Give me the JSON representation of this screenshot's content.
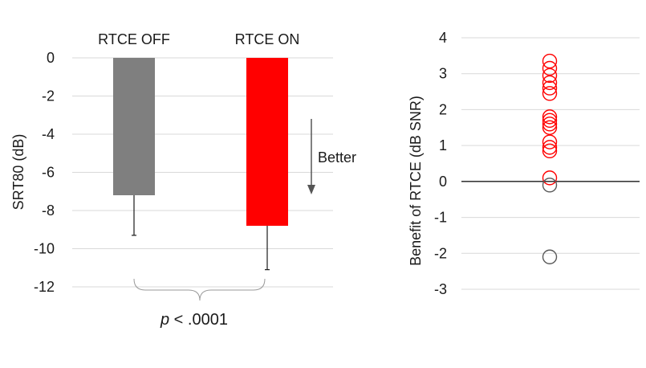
{
  "chart_data": [
    {
      "type": "bar",
      "title": "",
      "ylabel": "SRT80 (dB)",
      "ylim": [
        -12,
        0
      ],
      "yticks": [
        0,
        -2,
        -4,
        -6,
        -8,
        -10,
        -12
      ],
      "grid": true,
      "categories": [
        "RTCE OFF",
        "RTCE ON"
      ],
      "values": [
        -7.2,
        -8.8
      ],
      "error_bars": [
        2.1,
        2.3
      ],
      "colors": [
        "#7f7f7f",
        "#ff0000"
      ],
      "annotations": {
        "arrow_label": "Better",
        "significance_italic": "p",
        "significance_rest": " < .0001"
      }
    },
    {
      "type": "scatter",
      "title": "",
      "ylabel": "Benefit of RTCE  (dB SNR)",
      "ylim": [
        -3,
        4
      ],
      "yticks": [
        4,
        3,
        2,
        1,
        0,
        -1,
        -2,
        -3
      ],
      "grid": true,
      "zero_line": true,
      "points": [
        {
          "y": 3.35,
          "color": "#ff0000"
        },
        {
          "y": 3.15,
          "color": "#ff0000"
        },
        {
          "y": 2.95,
          "color": "#ff0000"
        },
        {
          "y": 2.75,
          "color": "#ff0000"
        },
        {
          "y": 2.6,
          "color": "#ff0000"
        },
        {
          "y": 2.45,
          "color": "#ff0000"
        },
        {
          "y": 1.8,
          "color": "#ff0000"
        },
        {
          "y": 1.7,
          "color": "#ff0000"
        },
        {
          "y": 1.6,
          "color": "#ff0000"
        },
        {
          "y": 1.5,
          "color": "#ff0000"
        },
        {
          "y": 1.1,
          "color": "#ff0000"
        },
        {
          "y": 0.95,
          "color": "#ff0000"
        },
        {
          "y": 0.85,
          "color": "#ff0000"
        },
        {
          "y": 0.1,
          "color": "#ff0000"
        },
        {
          "y": -0.1,
          "color": "#595959"
        },
        {
          "y": -2.1,
          "color": "#595959"
        }
      ]
    }
  ]
}
